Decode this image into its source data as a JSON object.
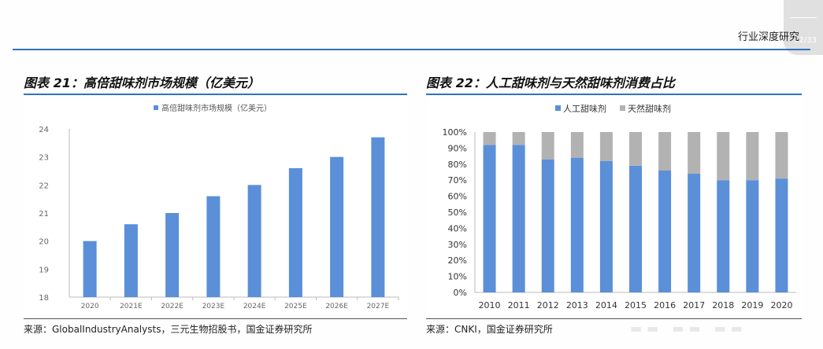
{
  "header": {
    "report_type": "行业深度研究",
    "page_number": "12/33"
  },
  "left_figure": {
    "label": "图表 21：",
    "title": "高倍甜味剂市场规模（亿美元）",
    "source": "来源：GlobalIndustryAnalysts，三元生物招股书，国金证券研究所"
  },
  "right_figure": {
    "label": "图表 22：",
    "title": "人工甜味剂与天然甜味剂消费占比",
    "source": "来源：CNKI，国金证券研究所"
  },
  "colors": {
    "accent": "#2f73c2",
    "bar_blue": "#5b8fd8",
    "bar_gray": "#b2b2b2"
  },
  "chart_data": [
    {
      "type": "bar",
      "title": "",
      "xlabel": "",
      "ylabel": "",
      "categories": [
        "2020",
        "2021E",
        "2022E",
        "2023E",
        "2024E",
        "2025E",
        "2026E",
        "2027E"
      ],
      "series": [
        {
          "name": "高倍甜味剂市场规模（亿美元）",
          "values": [
            20.0,
            20.6,
            21.0,
            21.6,
            22.0,
            22.6,
            23.0,
            23.7
          ]
        }
      ],
      "ylim": [
        18,
        24
      ],
      "yticks": [
        "18",
        "19",
        "20",
        "21",
        "22",
        "23",
        "24"
      ],
      "grid": false,
      "legend": "top-center"
    },
    {
      "type": "bar",
      "stacked": true,
      "title": "",
      "xlabel": "",
      "ylabel": "",
      "categories": [
        "2010",
        "2011",
        "2012",
        "2013",
        "2014",
        "2015",
        "2016",
        "2017",
        "2018",
        "2019",
        "2020"
      ],
      "series": [
        {
          "name": "人工甜味剂",
          "values": [
            92,
            92,
            83,
            84,
            82,
            79,
            76,
            74,
            70,
            70,
            71
          ]
        },
        {
          "name": "天然甜味剂",
          "values": [
            8,
            8,
            17,
            16,
            18,
            21,
            24,
            26,
            30,
            30,
            29
          ]
        }
      ],
      "ylim": [
        0,
        100
      ],
      "yticks": [
        "0%",
        "10%",
        "20%",
        "30%",
        "40%",
        "50%",
        "60%",
        "70%",
        "80%",
        "90%",
        "100%"
      ],
      "grid": false,
      "legend": "top-center"
    }
  ]
}
